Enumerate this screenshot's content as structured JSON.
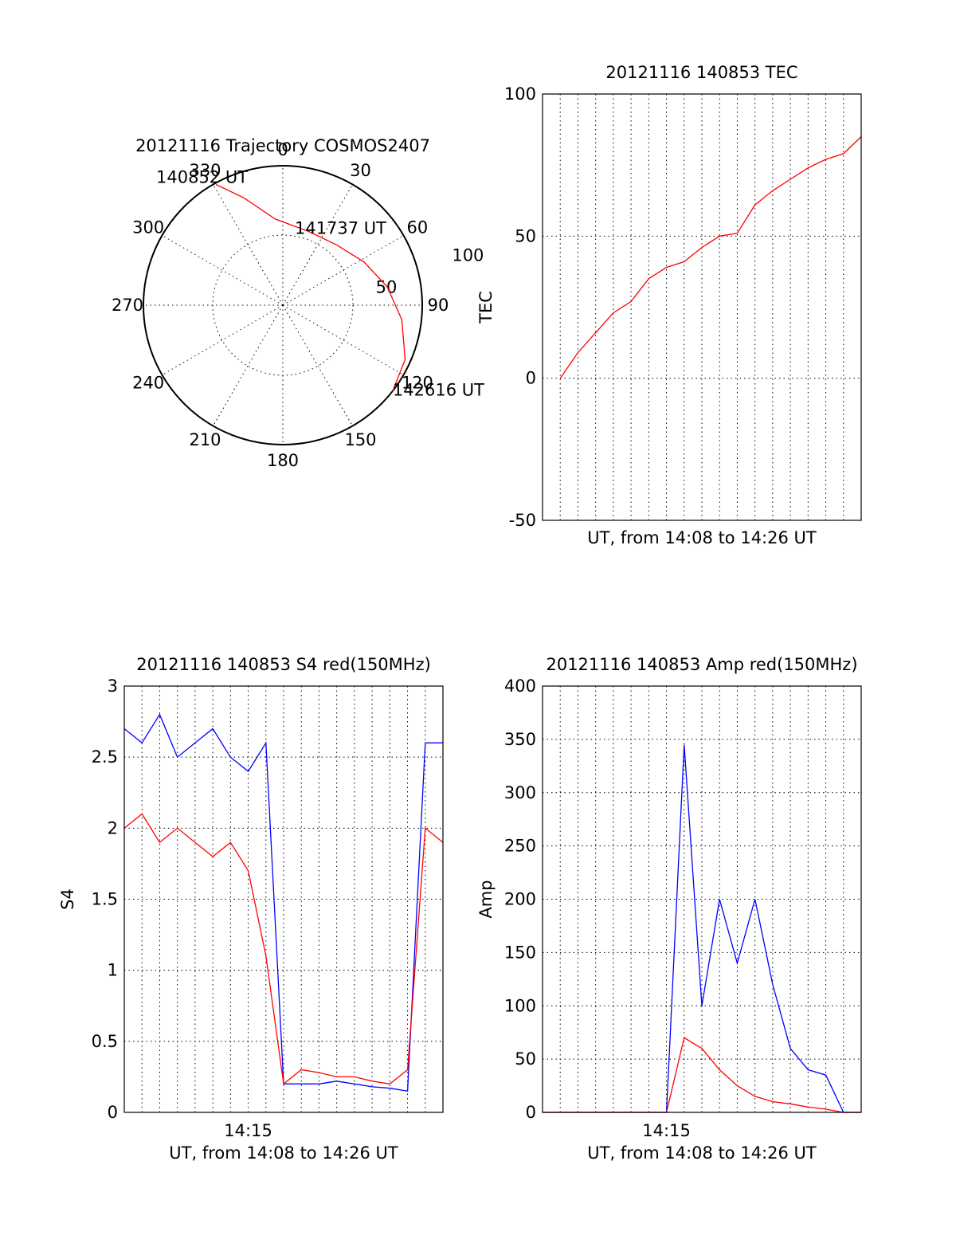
{
  "figure": {
    "background": "#ffffff"
  },
  "chart_data": [
    {
      "id": "trajectory",
      "type": "polar",
      "title": "20121116 Trajectory COSMOS2407",
      "angle_labels": [
        "0",
        "30",
        "60",
        "90",
        "120",
        "150",
        "180",
        "210",
        "240",
        "270",
        "300",
        "330"
      ],
      "radial_ticks": [
        {
          "elevation": 50,
          "label": "50"
        },
        {
          "elevation": 100,
          "label": "100"
        }
      ],
      "radial_range": [
        0,
        100
      ],
      "grid": true,
      "series": [
        {
          "color": "#ff0000",
          "points": [
            {
              "azimuth": 331,
              "zenith_rel": 0.99
            },
            {
              "azimuth": 340,
              "zenith_rel": 0.82
            },
            {
              "azimuth": 355,
              "zenith_rel": 0.62
            },
            {
              "azimuth": 20,
              "zenith_rel": 0.56
            },
            {
              "azimuth": 42,
              "zenith_rel": 0.58
            },
            {
              "azimuth": 62,
              "zenith_rel": 0.66
            },
            {
              "azimuth": 80,
              "zenith_rel": 0.76
            },
            {
              "azimuth": 97,
              "zenith_rel": 0.86
            },
            {
              "azimuth": 114,
              "zenith_rel": 0.96
            },
            {
              "azimuth": 128,
              "zenith_rel": 1.0
            }
          ]
        }
      ],
      "annotations": [
        {
          "label": "140852 UT",
          "azimuth": 331,
          "zenith_rel": 0.99
        },
        {
          "label": "141737 UT",
          "azimuth": 58,
          "zenith_rel": 0.64
        },
        {
          "label": "142616 UT",
          "azimuth": 128,
          "zenith_rel": 1.0
        }
      ]
    },
    {
      "id": "tec",
      "type": "line",
      "title": "20121116 140853 TEC",
      "xlabel": "UT, from 14:08 to 14:26 UT",
      "ylabel": "TEC",
      "xlim": [
        "14:08",
        "14:26"
      ],
      "ylim": [
        -50,
        100
      ],
      "yticks": [
        -50,
        0,
        50,
        100
      ],
      "xtick_labels": [],
      "grid": true,
      "series": [
        {
          "color": "#ff0000",
          "x": [
            "14:09",
            "14:10",
            "14:11",
            "14:12",
            "14:13",
            "14:14",
            "14:15",
            "14:16",
            "14:17",
            "14:18",
            "14:19",
            "14:20",
            "14:21",
            "14:22",
            "14:23",
            "14:24",
            "14:25",
            "14:26"
          ],
          "y": [
            0,
            9,
            16,
            23,
            27,
            35,
            39,
            41,
            46,
            50,
            51,
            61,
            66,
            70,
            74,
            77,
            79,
            85
          ]
        }
      ]
    },
    {
      "id": "s4",
      "type": "line",
      "title": "20121116 140853 S4 red(150MHz)",
      "xlabel": "UT, from 14:08 to 14:26 UT",
      "ylabel": "S4",
      "xlim": [
        "14:08",
        "14:26"
      ],
      "ylim": [
        0,
        3
      ],
      "yticks": [
        0,
        0.5,
        1,
        1.5,
        2,
        2.5,
        3
      ],
      "ytick_labels": [
        "0",
        "0.5",
        "1",
        "1.5",
        "2",
        "2.5",
        "3"
      ],
      "xtick_labels": [
        {
          "x": "14:15",
          "label": "14:15"
        }
      ],
      "grid": true,
      "series": [
        {
          "color": "#0000ff",
          "x": [
            "14:08",
            "14:09",
            "14:10",
            "14:11",
            "14:12",
            "14:13",
            "14:14",
            "14:15",
            "14:16",
            "14:17",
            "14:18",
            "14:19",
            "14:20",
            "14:21",
            "14:22",
            "14:23",
            "14:24",
            "14:25",
            "14:26"
          ],
          "y": [
            2.7,
            2.6,
            2.8,
            2.5,
            2.6,
            2.7,
            2.5,
            2.4,
            2.6,
            0.2,
            0.2,
            0.2,
            0.22,
            0.2,
            0.18,
            0.17,
            0.15,
            2.6,
            2.6
          ]
        },
        {
          "color": "#ff0000",
          "x": [
            "14:08",
            "14:09",
            "14:10",
            "14:11",
            "14:12",
            "14:13",
            "14:14",
            "14:15",
            "14:16",
            "14:17",
            "14:18",
            "14:19",
            "14:20",
            "14:21",
            "14:22",
            "14:23",
            "14:24",
            "14:25",
            "14:26"
          ],
          "y": [
            2.0,
            2.1,
            1.9,
            2.0,
            1.9,
            1.8,
            1.9,
            1.7,
            1.1,
            0.2,
            0.3,
            0.28,
            0.25,
            0.25,
            0.22,
            0.2,
            0.3,
            2.0,
            1.9
          ]
        }
      ]
    },
    {
      "id": "amp",
      "type": "line",
      "title": "20121116 140853 Amp red(150MHz)",
      "xlabel": "UT, from 14:08 to 14:26 UT",
      "ylabel": "Amp",
      "xlim": [
        "14:08",
        "14:26"
      ],
      "ylim": [
        0,
        400
      ],
      "yticks": [
        0,
        50,
        100,
        150,
        200,
        250,
        300,
        350,
        400
      ],
      "xtick_labels": [
        {
          "x": "14:15",
          "label": "14:15"
        }
      ],
      "grid": true,
      "series": [
        {
          "color": "#0000ff",
          "x": [
            "14:08",
            "14:09",
            "14:10",
            "14:11",
            "14:12",
            "14:13",
            "14:14",
            "14:15",
            "14:16",
            "14:17",
            "14:18",
            "14:19",
            "14:20",
            "14:21",
            "14:22",
            "14:23",
            "14:24",
            "14:25",
            "14:26"
          ],
          "y": [
            0,
            0,
            0,
            0,
            0,
            0,
            0,
            0,
            345,
            100,
            200,
            140,
            200,
            120,
            60,
            40,
            35,
            0,
            0
          ]
        },
        {
          "color": "#ff0000",
          "x": [
            "14:08",
            "14:09",
            "14:10",
            "14:11",
            "14:12",
            "14:13",
            "14:14",
            "14:15",
            "14:16",
            "14:17",
            "14:18",
            "14:19",
            "14:20",
            "14:21",
            "14:22",
            "14:23",
            "14:24",
            "14:25",
            "14:26"
          ],
          "y": [
            0,
            0,
            0,
            0,
            0,
            0,
            0,
            0,
            70,
            60,
            40,
            25,
            15,
            10,
            8,
            5,
            3,
            0,
            0
          ]
        }
      ]
    }
  ]
}
